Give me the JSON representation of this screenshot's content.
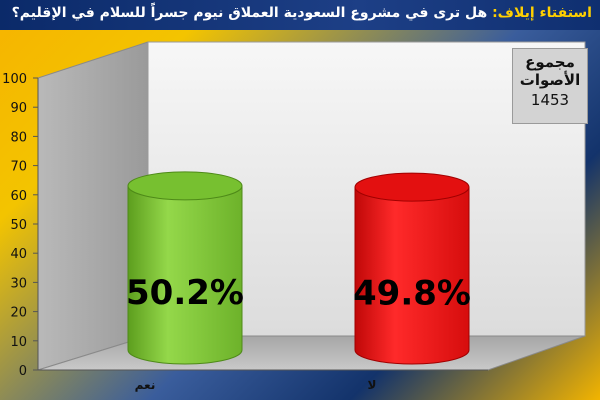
{
  "title": {
    "label": "استفتاء إيلاف:",
    "question": "هل ترى في مشروع السعودية العملاق نيوم جسراً للسلام في الإقليم؟"
  },
  "total": {
    "label": "مجموع الأصوات",
    "value": "1453"
  },
  "colors": {
    "yes": "#77c030",
    "no": "#e31010"
  },
  "chart_data": {
    "type": "bar",
    "style": "3d-cylinder",
    "categories": [
      "نعم",
      "لا"
    ],
    "values": [
      50.2,
      49.8
    ],
    "value_labels": [
      "50.2%",
      "49.8%"
    ],
    "ylim": [
      0,
      100
    ],
    "yticks": [
      0,
      10,
      20,
      30,
      40,
      50,
      60,
      70,
      80,
      90,
      100
    ],
    "ytick_labels": [
      "0",
      "10",
      "20",
      "30",
      "40",
      "50",
      "60",
      "70",
      "80",
      "90",
      "100"
    ],
    "grid": false,
    "legend": "none"
  }
}
